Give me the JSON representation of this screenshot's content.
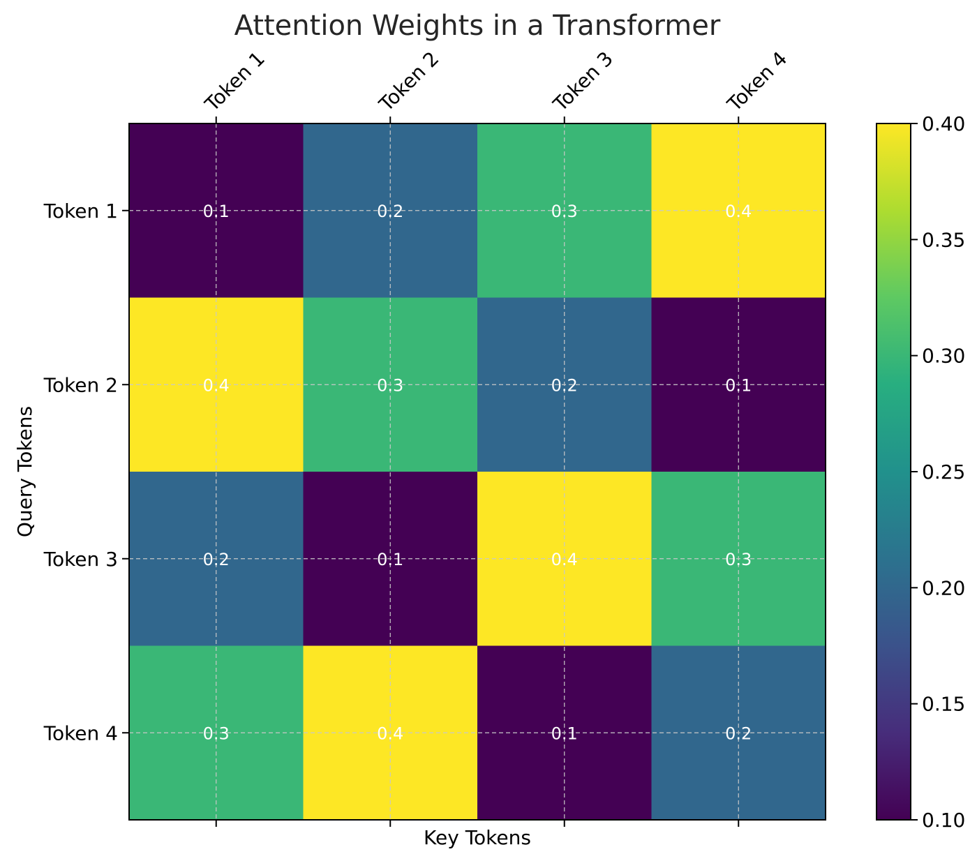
{
  "chart_data": {
    "type": "heatmap",
    "title": "Attention Weights in a Transformer",
    "xlabel": "Key Tokens",
    "ylabel": "Query Tokens",
    "x_categories": [
      "Token 1",
      "Token 2",
      "Token 3",
      "Token 4"
    ],
    "y_categories": [
      "Token 1",
      "Token 2",
      "Token 3",
      "Token 4"
    ],
    "values": [
      [
        0.1,
        0.2,
        0.3,
        0.4
      ],
      [
        0.4,
        0.3,
        0.2,
        0.1
      ],
      [
        0.2,
        0.1,
        0.4,
        0.3
      ],
      [
        0.3,
        0.4,
        0.1,
        0.2
      ]
    ],
    "x_tick_position": "top",
    "grid": true,
    "colormap": "viridis",
    "colorbar": {
      "range": [
        0.1,
        0.4
      ],
      "ticks": [
        0.1,
        0.15,
        0.2,
        0.25,
        0.3,
        0.35,
        0.4
      ],
      "tick_labels": [
        "0.10",
        "0.15",
        "0.20",
        "0.25",
        "0.30",
        "0.35",
        "0.40"
      ]
    },
    "cell_label_color": "#ffffff"
  }
}
